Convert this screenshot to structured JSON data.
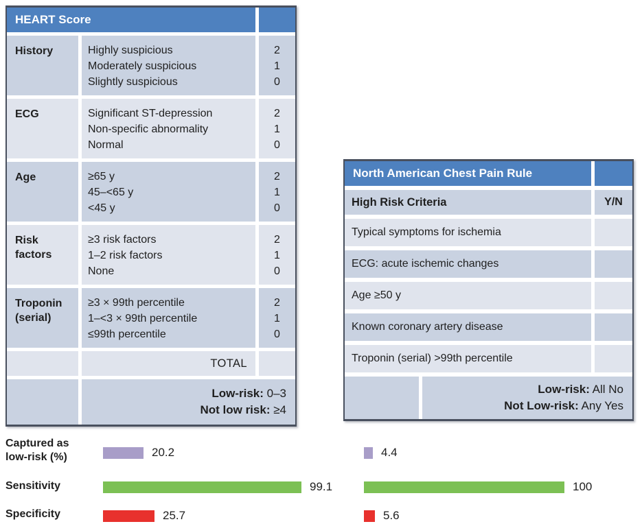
{
  "heart_table": {
    "title": "HEART Score",
    "rows": [
      {
        "category": "History",
        "options": [
          "Highly suspicious",
          "Moderately suspicious",
          "Slightly suspicious"
        ],
        "scores": [
          "2",
          "1",
          "0"
        ]
      },
      {
        "category": "ECG",
        "options": [
          "Significant ST-depression",
          "Non-specific abnormality",
          "Normal"
        ],
        "scores": [
          "2",
          "1",
          "0"
        ]
      },
      {
        "category": "Age",
        "options": [
          "≥65 y",
          "45–<65 y",
          "<45 y"
        ],
        "scores": [
          "2",
          "1",
          "0"
        ]
      },
      {
        "category": "Risk factors",
        "options": [
          "≥3 risk factors",
          "1–2 risk factors",
          "None"
        ],
        "scores": [
          "2",
          "1",
          "0"
        ]
      },
      {
        "category": "Troponin (serial)",
        "options": [
          "≥3 × 99th percentile",
          "1–<3 × 99th percentile",
          "≤99th percentile"
        ],
        "scores": [
          "2",
          "1",
          "0"
        ]
      }
    ],
    "total_label": "TOTAL",
    "footer": {
      "low_risk_label": "Low-risk:",
      "low_risk_value": " 0–3",
      "not_low_risk_label": "Not low risk:",
      "not_low_risk_value": " ≥4"
    }
  },
  "nacpr_table": {
    "title": "North American Chest Pain Rule",
    "criteria_header": "High Risk Criteria",
    "yn_header": "Y/N",
    "criteria": [
      "Typical symptoms for ischemia",
      "ECG: acute ischemic changes",
      "Age ≥50 y",
      "Known coronary artery disease",
      "Troponin (serial) >99th percentile"
    ],
    "footer": {
      "low_risk_label": "Low-risk:",
      "low_risk_value": " All No",
      "not_low_risk_label": "Not Low-risk:",
      "not_low_risk_value": " Any Yes"
    }
  },
  "chart_data": {
    "type": "bar",
    "orientation": "horizontal",
    "metrics": [
      "Captured as low-risk (%)",
      "Sensitivity",
      "Specificity"
    ],
    "series": [
      {
        "name": "HEART Score",
        "values": [
          20.2,
          99.1,
          25.7
        ],
        "displays": [
          "20.2",
          "99.1",
          "25.7"
        ]
      },
      {
        "name": "North American Chest Pain Rule",
        "values": [
          4.4,
          100,
          5.6
        ],
        "displays": [
          "4.4",
          "100",
          "5.6"
        ]
      }
    ],
    "bar_colors": [
      "#a89dc8",
      "#7cc054",
      "#e8312d"
    ],
    "value_range": [
      0,
      100
    ],
    "grid": false,
    "legend": false
  },
  "colors": {
    "header_blue": "#4e81bf",
    "row_dark": "#c9d2e1",
    "row_light": "#e0e4ed"
  }
}
